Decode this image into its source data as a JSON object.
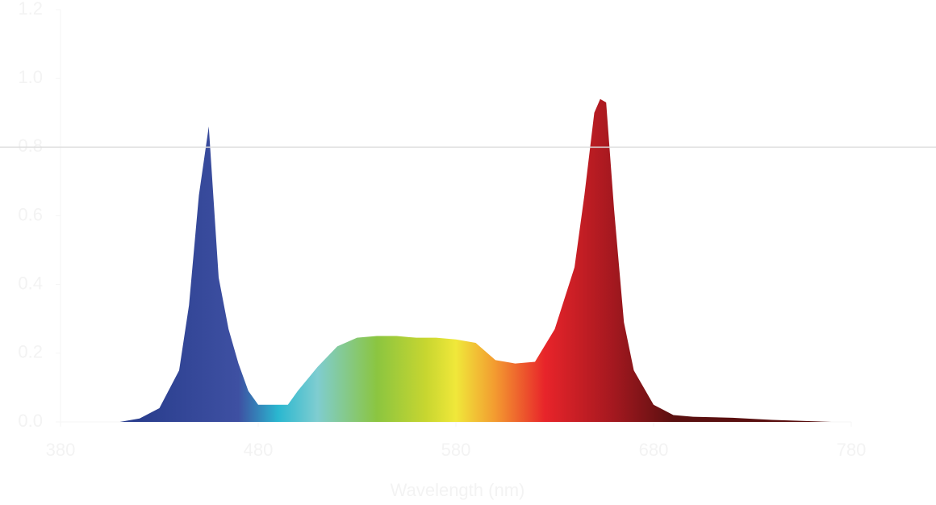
{
  "chart_data": {
    "type": "area",
    "x_label": "Wavelength (nm)",
    "x": [
      410,
      420,
      430,
      440,
      445,
      450,
      455,
      460,
      465,
      470,
      475,
      480,
      490,
      495,
      500,
      510,
      520,
      530,
      540,
      550,
      560,
      570,
      580,
      590,
      600,
      610,
      620,
      630,
      640,
      645,
      650,
      653,
      656,
      660,
      665,
      670,
      680,
      690,
      700,
      720,
      740,
      760,
      770
    ],
    "values": [
      0,
      0.01,
      0.04,
      0.15,
      0.34,
      0.66,
      0.86,
      0.42,
      0.27,
      0.17,
      0.09,
      0.05,
      0.05,
      0.05,
      0.09,
      0.16,
      0.22,
      0.245,
      0.25,
      0.25,
      0.245,
      0.245,
      0.24,
      0.23,
      0.18,
      0.17,
      0.175,
      0.27,
      0.45,
      0.66,
      0.9,
      0.94,
      0.93,
      0.62,
      0.29,
      0.15,
      0.05,
      0.02,
      0.015,
      0.012,
      0.006,
      0.002,
      0
    ],
    "xlim": [
      380,
      780
    ],
    "xticks": [
      380,
      480,
      580,
      680,
      780
    ],
    "ylim": [
      0,
      1.2
    ],
    "yticks": [
      {
        "value": 0,
        "label": "0.0"
      },
      {
        "value": 0.2,
        "label": "0.2"
      },
      {
        "value": 0.4,
        "label": "0.4"
      },
      {
        "value": 0.6,
        "label": "0.6"
      },
      {
        "value": 0.8,
        "label": "0.8"
      },
      {
        "value": 1,
        "label": "1.0"
      },
      {
        "value": 1.2,
        "label": "1.2"
      }
    ],
    "reference_line": 0.8,
    "color_stops": [
      [
        420,
        "#2a3e8e"
      ],
      [
        470,
        "#3e50a2"
      ],
      [
        490,
        "#2ab7d0"
      ],
      [
        510,
        "#7fcdd0"
      ],
      [
        540,
        "#8bc540"
      ],
      [
        565,
        "#c8d630"
      ],
      [
        580,
        "#f0e83a"
      ],
      [
        600,
        "#f39a30"
      ],
      [
        625,
        "#e8242a"
      ],
      [
        660,
        "#a3181f"
      ],
      [
        690,
        "#5a1010"
      ]
    ]
  }
}
